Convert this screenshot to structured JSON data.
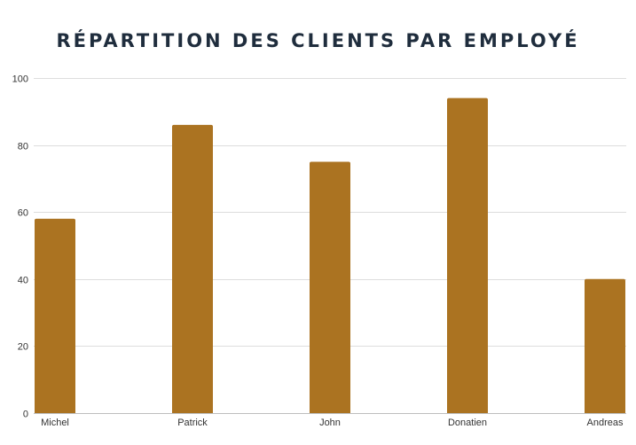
{
  "chart_data": {
    "type": "bar",
    "title": "RÉPARTITION DES CLIENTS PAR EMPLOYÉ",
    "categories": [
      "Michel",
      "Patrick",
      "John",
      "Donatien",
      "Andreas"
    ],
    "values": [
      58,
      86,
      75,
      94,
      40
    ],
    "ylim": [
      0,
      100
    ],
    "yticks": [
      0,
      20,
      40,
      60,
      80,
      100
    ],
    "xlabel": "",
    "ylabel": "",
    "grid": true,
    "bar_color": "#ab7321"
  }
}
